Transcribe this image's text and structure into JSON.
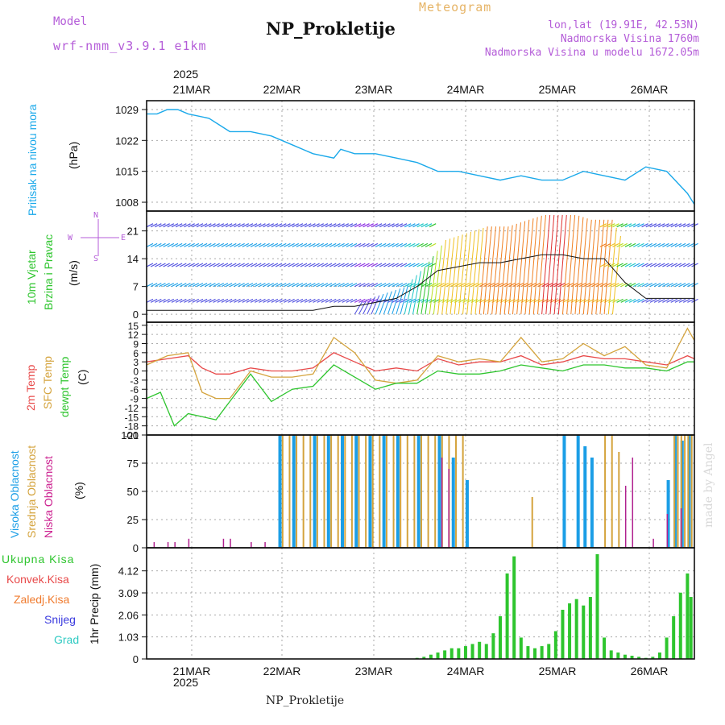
{
  "header": {
    "model_label": "Model",
    "model_name": "wrf-nmm_v3.9.1 e1km",
    "title": "NP_Prokletije",
    "subtitle": "Meteogram",
    "lonlat": "lon,lat (19.91E, 42.53N)",
    "elevation": "Nadmorska Visina 1760m",
    "model_elevation": "Nadmorska Visina u modelu 1672.05m",
    "footer_title": "NP_Prokletije",
    "watermark": "made by Angel"
  },
  "colors": {
    "pressure": "#1ba9ea",
    "temp2m": "#e84a4a",
    "sfc": "#d4a33c",
    "dew": "#2ec52e",
    "cloud_high": "#1b9ee6",
    "cloud_mid": "#d4a33c",
    "cloud_low": "#b0208f",
    "precip": "#2ec52e",
    "header_purple": "#b45cd8",
    "subtitle_orange": "#e6b466"
  },
  "chart_data": [
    {
      "type": "line",
      "title": "",
      "ylabel_lines": [
        "Pritisak na nivou mora",
        "(hPa)"
      ],
      "yticks": [
        1008,
        1015,
        1022,
        1029
      ],
      "ylim": [
        1006,
        1031
      ],
      "x_days": [
        "21MAR",
        "22MAR",
        "23MAR",
        "24MAR",
        "25MAR",
        "26MAR"
      ],
      "x_year": "2025",
      "grid": true,
      "series": [
        {
          "key": "pressure",
          "x": [
            0,
            3,
            6,
            9,
            12,
            18,
            24,
            30,
            36,
            42,
            48,
            54,
            56,
            60,
            66,
            72,
            78,
            84,
            90,
            96,
            102,
            108,
            114,
            120,
            126,
            132,
            138,
            144,
            150,
            156,
            158
          ],
          "values": [
            1028,
            1028,
            1029,
            1029,
            1028,
            1027,
            1024,
            1024,
            1023,
            1021,
            1019,
            1018,
            1020,
            1019,
            1019,
            1018,
            1017,
            1015,
            1015,
            1014,
            1013,
            1014,
            1013,
            1013,
            1015,
            1014,
            1013,
            1016,
            1015,
            1010,
            1007.5
          ]
        }
      ]
    },
    {
      "type": "line",
      "title": "",
      "ylabel_lines": [
        "10m Vjetar",
        "Brzina i Pravac",
        "(m/s)"
      ],
      "compass": {
        "n": "N",
        "s": "S",
        "e": "E",
        "w": "W"
      },
      "yticks": [
        0,
        7,
        14,
        21
      ],
      "ylim": [
        -2,
        26
      ],
      "grid": true,
      "series": [
        {
          "name": "",
          "x": [
            0,
            6,
            12,
            18,
            24,
            30,
            36,
            42,
            48,
            54,
            60,
            66,
            72,
            78,
            84,
            90,
            96,
            102,
            108,
            114,
            120,
            126,
            132,
            138,
            144,
            150,
            156,
            158
          ],
          "values": [
            1,
            1,
            1,
            1,
            1,
            1,
            1,
            1,
            1,
            2,
            2,
            3,
            4,
            7,
            11,
            12,
            13,
            13,
            14,
            15,
            15,
            14,
            14,
            8,
            4,
            4,
            4,
            4
          ]
        }
      ]
    },
    {
      "type": "line",
      "title": "",
      "ylabel_lines": [
        "2m Temp",
        "SFC Temp",
        "dewpt Temp",
        "(C)"
      ],
      "yticks": [
        15,
        12,
        9,
        6,
        3,
        0,
        -3,
        -6,
        -9,
        -12,
        -15,
        -18,
        -21
      ],
      "ylim": [
        -21,
        16
      ],
      "grid": true,
      "series": [
        {
          "name": "2m Temp",
          "key": "temp2m",
          "x": [
            0,
            6,
            12,
            16,
            20,
            24,
            30,
            36,
            42,
            48,
            54,
            60,
            66,
            72,
            78,
            84,
            90,
            96,
            102,
            108,
            114,
            120,
            126,
            132,
            138,
            144,
            150,
            156,
            158
          ],
          "values": [
            3,
            4,
            5,
            1,
            -1,
            -1,
            1,
            0,
            0,
            1,
            6,
            3,
            0,
            1,
            0,
            4,
            2,
            3,
            3,
            5,
            2,
            3,
            5,
            4,
            4,
            3,
            2,
            5,
            4
          ]
        },
        {
          "name": "SFC Temp",
          "key": "sfc",
          "x": [
            0,
            6,
            12,
            16,
            20,
            24,
            30,
            36,
            42,
            48,
            54,
            60,
            66,
            72,
            78,
            84,
            90,
            96,
            102,
            108,
            114,
            120,
            126,
            132,
            138,
            144,
            150,
            156,
            158
          ],
          "values": [
            2,
            5,
            6,
            -7,
            -9,
            -9,
            0,
            -2,
            -2,
            -1,
            11,
            6,
            -3,
            -4,
            -3,
            5,
            3,
            4,
            3,
            11,
            3,
            4,
            9,
            5,
            8,
            2,
            1,
            14,
            10
          ]
        },
        {
          "name": "dewpt Temp",
          "key": "dew",
          "x": [
            0,
            4,
            8,
            12,
            16,
            20,
            24,
            30,
            36,
            42,
            48,
            54,
            60,
            66,
            72,
            78,
            84,
            90,
            96,
            102,
            108,
            114,
            120,
            126,
            132,
            138,
            144,
            150,
            156,
            158
          ],
          "values": [
            -9,
            -7,
            -18,
            -14,
            -15,
            -16,
            -10,
            -1,
            -10,
            -6,
            -5,
            2,
            -2,
            -6,
            -4,
            -4,
            0,
            -1,
            -1,
            0,
            2,
            1,
            0,
            2,
            2,
            1,
            1,
            0,
            3,
            3
          ]
        }
      ]
    },
    {
      "type": "bar",
      "title": "",
      "ylabel_lines": [
        "Visoka Oblacnost",
        "Srednja Oblacnost",
        "Niska Oblacnost",
        "(%)"
      ],
      "yticks": [
        0,
        25,
        50,
        75,
        100
      ],
      "ylim": [
        0,
        100
      ],
      "grid": true,
      "series": [
        {
          "name": "Visoka Oblacnost",
          "key": "cloud_high",
          "x": [
            38,
            42,
            48,
            52,
            56,
            60,
            64,
            68,
            72,
            78,
            84,
            88,
            92,
            120,
            124,
            126,
            128,
            150,
            152,
            154,
            156
          ],
          "values": [
            100,
            100,
            100,
            100,
            100,
            100,
            100,
            100,
            100,
            100,
            100,
            80,
            60,
            100,
            100,
            90,
            80,
            60,
            100,
            95,
            100
          ]
        },
        {
          "name": "Srednja Oblacnost",
          "key": "cloud_mid",
          "x": [
            39,
            41,
            43,
            45,
            47,
            49,
            51,
            53,
            55,
            57,
            59,
            61,
            63,
            65,
            67,
            69,
            71,
            73,
            75,
            77,
            79,
            81,
            83,
            85,
            87,
            89,
            91,
            111,
            132,
            134,
            136,
            152,
            153,
            154,
            155,
            156,
            157
          ],
          "values": [
            100,
            100,
            100,
            100,
            100,
            100,
            100,
            100,
            100,
            100,
            100,
            100,
            100,
            100,
            100,
            100,
            100,
            100,
            100,
            100,
            100,
            100,
            100,
            100,
            100,
            100,
            100,
            45,
            100,
            100,
            85,
            100,
            100,
            100,
            100,
            100,
            100
          ]
        },
        {
          "name": "Niska Oblacnost",
          "key": "cloud_low",
          "x": [
            2,
            6,
            8,
            12,
            22,
            24,
            30,
            34,
            85,
            87,
            138,
            140,
            146,
            150,
            154
          ],
          "values": [
            5,
            5,
            5,
            8,
            8,
            8,
            5,
            5,
            80,
            70,
            55,
            80,
            8,
            30,
            35
          ]
        }
      ]
    },
    {
      "type": "bar",
      "title": "",
      "ylabel_lines": [
        "1hr Precip (mm)"
      ],
      "legend": [
        "Ukupna Kisa",
        "Konvek.Kisa",
        "Zaledj.Kisa",
        "Snijeg",
        "Grad"
      ],
      "legend_colors": [
        "#2ec52e",
        "#e84a4a",
        "#f07b2e",
        "#3a3adf",
        "#2ecac2"
      ],
      "yticks": [
        0,
        1.03,
        2.06,
        3.09,
        4.12
      ],
      "ylim": [
        0,
        5.2
      ],
      "grid": true,
      "series": [
        {
          "name": "Ukupna Kisa",
          "key": "precip",
          "x": [
            78,
            80,
            82,
            84,
            86,
            88,
            90,
            92,
            94,
            96,
            98,
            100,
            102,
            104,
            106,
            108,
            110,
            112,
            114,
            116,
            118,
            120,
            122,
            124,
            126,
            128,
            130,
            132,
            134,
            136,
            138,
            140,
            142,
            144,
            146,
            148,
            150,
            152,
            154,
            156,
            157
          ],
          "values": [
            0.05,
            0.1,
            0.2,
            0.3,
            0.4,
            0.5,
            0.5,
            0.6,
            0.7,
            0.8,
            0.7,
            1.2,
            2.0,
            4.0,
            4.8,
            1.0,
            0.6,
            0.5,
            0.6,
            0.7,
            1.3,
            2.3,
            2.6,
            2.8,
            2.5,
            2.9,
            4.9,
            1.0,
            0.4,
            0.3,
            0.2,
            0.15,
            0.1,
            0.05,
            0.1,
            0.3,
            1.0,
            2.0,
            3.1,
            4.0,
            2.9
          ]
        }
      ]
    }
  ]
}
